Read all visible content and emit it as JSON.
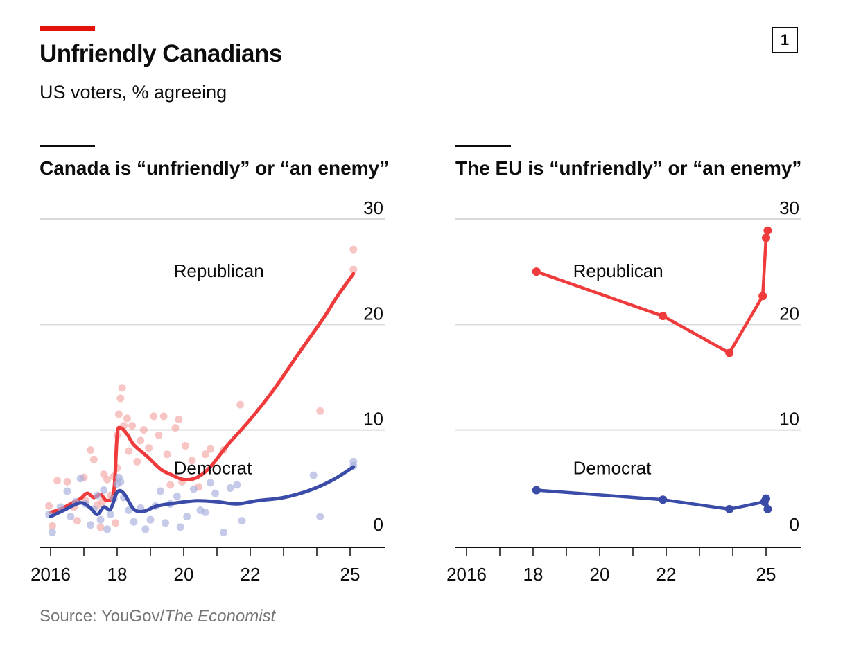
{
  "header": {
    "title": "Unfriendly Canadians",
    "subtitle": "US voters, % agreeing",
    "badge": "1"
  },
  "source": {
    "prefix": "Source: YouGov/",
    "publication": "The Economist"
  },
  "colors": {
    "accent": "#e3120b",
    "republican": "#ef3b3b",
    "democrat": "#3a4ca8",
    "republican_dots": "#f4a6a6",
    "democrat_dots": "#a6aedb",
    "grid": "#d9d9d9"
  },
  "chart_data": [
    {
      "type": "line",
      "title": "Canada is “unfriendly” or “an enemy”",
      "ylim": [
        0,
        30
      ],
      "xlim": [
        2015.7,
        2025.9
      ],
      "yticks": [
        0,
        10,
        20,
        30
      ],
      "xticks": [
        {
          "value": 2016,
          "label": "2016"
        },
        {
          "value": 2018,
          "label": "18"
        },
        {
          "value": 2020,
          "label": "20"
        },
        {
          "value": 2022,
          "label": "22"
        },
        {
          "value": 2025,
          "label": "25"
        }
      ],
      "grid": true,
      "series": [
        {
          "name": "Republican",
          "label_x": 2019.7,
          "label_y": 24.5,
          "trend": [
            [
              2016.0,
              2.2
            ],
            [
              2016.3,
              2.5
            ],
            [
              2016.6,
              3.0
            ],
            [
              2016.9,
              3.5
            ],
            [
              2017.1,
              4.0
            ],
            [
              2017.3,
              3.6
            ],
            [
              2017.5,
              3.9
            ],
            [
              2017.7,
              3.3
            ],
            [
              2017.9,
              4.2
            ],
            [
              2018.0,
              9.5
            ],
            [
              2018.1,
              10.2
            ],
            [
              2018.3,
              9.6
            ],
            [
              2018.5,
              8.6
            ],
            [
              2018.9,
              7.5
            ],
            [
              2019.3,
              6.3
            ],
            [
              2019.6,
              5.8
            ],
            [
              2020.0,
              5.3
            ],
            [
              2020.4,
              5.5
            ],
            [
              2020.8,
              6.5
            ],
            [
              2021.3,
              8.5
            ],
            [
              2022.0,
              11.0
            ],
            [
              2022.7,
              13.8
            ],
            [
              2023.4,
              17.0
            ],
            [
              2024.2,
              20.6
            ],
            [
              2024.6,
              22.6
            ],
            [
              2025.1,
              24.8
            ]
          ],
          "points": [
            [
              2015.95,
              2.8
            ],
            [
              2016.05,
              0.9
            ],
            [
              2016.2,
              5.2
            ],
            [
              2016.5,
              5.1
            ],
            [
              2016.7,
              2.7
            ],
            [
              2016.8,
              1.4
            ],
            [
              2017.0,
              5.5
            ],
            [
              2017.05,
              3.3
            ],
            [
              2017.2,
              8.1
            ],
            [
              2017.3,
              7.2
            ],
            [
              2017.4,
              2.9
            ],
            [
              2017.5,
              0.8
            ],
            [
              2017.55,
              3.2
            ],
            [
              2017.6,
              5.8
            ],
            [
              2017.7,
              5.3
            ],
            [
              2017.8,
              3.8
            ],
            [
              2017.9,
              5.6
            ],
            [
              2017.95,
              1.2
            ],
            [
              2018.0,
              6.4
            ],
            [
              2018.0,
              9.5
            ],
            [
              2018.05,
              11.5
            ],
            [
              2018.1,
              13.0
            ],
            [
              2018.15,
              14.0
            ],
            [
              2018.2,
              10.4
            ],
            [
              2018.3,
              11.1
            ],
            [
              2018.35,
              8.0
            ],
            [
              2018.45,
              10.4
            ],
            [
              2018.6,
              7.0
            ],
            [
              2018.7,
              9.0
            ],
            [
              2018.8,
              10.0
            ],
            [
              2018.95,
              8.3
            ],
            [
              2019.1,
              11.3
            ],
            [
              2019.25,
              9.5
            ],
            [
              2019.4,
              11.3
            ],
            [
              2019.5,
              7.7
            ],
            [
              2019.6,
              4.8
            ],
            [
              2019.75,
              10.2
            ],
            [
              2019.85,
              11.0
            ],
            [
              2019.95,
              5.1
            ],
            [
              2020.05,
              8.5
            ],
            [
              2020.25,
              7.1
            ],
            [
              2020.45,
              4.6
            ],
            [
              2020.65,
              7.7
            ],
            [
              2020.8,
              8.2
            ],
            [
              2021.2,
              8.1
            ],
            [
              2021.7,
              12.4
            ],
            [
              2024.1,
              11.8
            ],
            [
              2025.1,
              27.1
            ],
            [
              2025.1,
              25.2
            ]
          ]
        },
        {
          "name": "Democrat",
          "label_x": 2019.7,
          "label_y": 5.8,
          "trend": [
            [
              2016.0,
              1.8
            ],
            [
              2016.4,
              2.4
            ],
            [
              2016.9,
              3.1
            ],
            [
              2017.2,
              2.6
            ],
            [
              2017.4,
              2.0
            ],
            [
              2017.6,
              2.7
            ],
            [
              2017.8,
              2.5
            ],
            [
              2018.0,
              4.1
            ],
            [
              2018.2,
              4.0
            ],
            [
              2018.5,
              2.5
            ],
            [
              2018.8,
              2.3
            ],
            [
              2019.2,
              2.8
            ],
            [
              2019.8,
              3.1
            ],
            [
              2020.4,
              3.3
            ],
            [
              2021.0,
              3.2
            ],
            [
              2021.6,
              3.0
            ],
            [
              2022.2,
              3.3
            ],
            [
              2023.0,
              3.6
            ],
            [
              2023.8,
              4.3
            ],
            [
              2024.5,
              5.3
            ],
            [
              2025.1,
              6.5
            ]
          ],
          "points": [
            [
              2015.95,
              2.0
            ],
            [
              2016.05,
              0.3
            ],
            [
              2016.3,
              2.7
            ],
            [
              2016.5,
              4.2
            ],
            [
              2016.6,
              1.8
            ],
            [
              2016.75,
              3.2
            ],
            [
              2016.9,
              5.4
            ],
            [
              2017.05,
              3.0
            ],
            [
              2017.2,
              1.0
            ],
            [
              2017.3,
              2.5
            ],
            [
              2017.4,
              3.8
            ],
            [
              2017.5,
              1.5
            ],
            [
              2017.6,
              4.3
            ],
            [
              2017.7,
              0.6
            ],
            [
              2017.8,
              2.0
            ],
            [
              2017.9,
              3.5
            ],
            [
              2018.0,
              4.9
            ],
            [
              2018.05,
              5.5
            ],
            [
              2018.1,
              5.1
            ],
            [
              2018.2,
              3.6
            ],
            [
              2018.35,
              2.4
            ],
            [
              2018.5,
              1.3
            ],
            [
              2018.7,
              2.6
            ],
            [
              2018.85,
              0.6
            ],
            [
              2019.0,
              1.5
            ],
            [
              2019.15,
              2.8
            ],
            [
              2019.3,
              4.2
            ],
            [
              2019.45,
              1.2
            ],
            [
              2019.6,
              3.0
            ],
            [
              2019.8,
              3.7
            ],
            [
              2019.9,
              0.8
            ],
            [
              2020.1,
              1.8
            ],
            [
              2020.3,
              4.4
            ],
            [
              2020.5,
              2.4
            ],
            [
              2020.65,
              2.2
            ],
            [
              2020.8,
              5.0
            ],
            [
              2020.95,
              4.0
            ],
            [
              2021.2,
              0.3
            ],
            [
              2021.4,
              4.5
            ],
            [
              2021.6,
              4.8
            ],
            [
              2021.75,
              1.4
            ],
            [
              2023.9,
              5.7
            ],
            [
              2024.1,
              1.8
            ],
            [
              2025.1,
              7.0
            ],
            [
              2025.1,
              6.6
            ]
          ]
        }
      ]
    },
    {
      "type": "line",
      "title": "The EU is “unfriendly” or “an enemy”",
      "ylim": [
        0,
        30
      ],
      "xlim": [
        2015.7,
        2025.9
      ],
      "yticks": [
        0,
        10,
        20,
        30
      ],
      "xticks": [
        {
          "value": 2016,
          "label": "2016"
        },
        {
          "value": 2018,
          "label": "18"
        },
        {
          "value": 2020,
          "label": "20"
        },
        {
          "value": 2022,
          "label": "22"
        },
        {
          "value": 2025,
          "label": "25"
        }
      ],
      "grid": true,
      "series": [
        {
          "name": "Republican",
          "label_x": 2019.2,
          "label_y": 24.5,
          "points": [
            [
              2018.1,
              25.0
            ],
            [
              2021.9,
              20.8
            ],
            [
              2023.9,
              17.3
            ],
            [
              2024.9,
              22.7
            ],
            [
              2025.0,
              28.2
            ],
            [
              2025.05,
              28.9
            ]
          ]
        },
        {
          "name": "Democrat",
          "label_x": 2019.2,
          "label_y": 5.8,
          "points": [
            [
              2018.1,
              4.3
            ],
            [
              2021.9,
              3.4
            ],
            [
              2023.9,
              2.5
            ],
            [
              2024.95,
              3.2
            ],
            [
              2025.0,
              3.5
            ],
            [
              2025.05,
              2.5
            ]
          ]
        }
      ]
    }
  ]
}
